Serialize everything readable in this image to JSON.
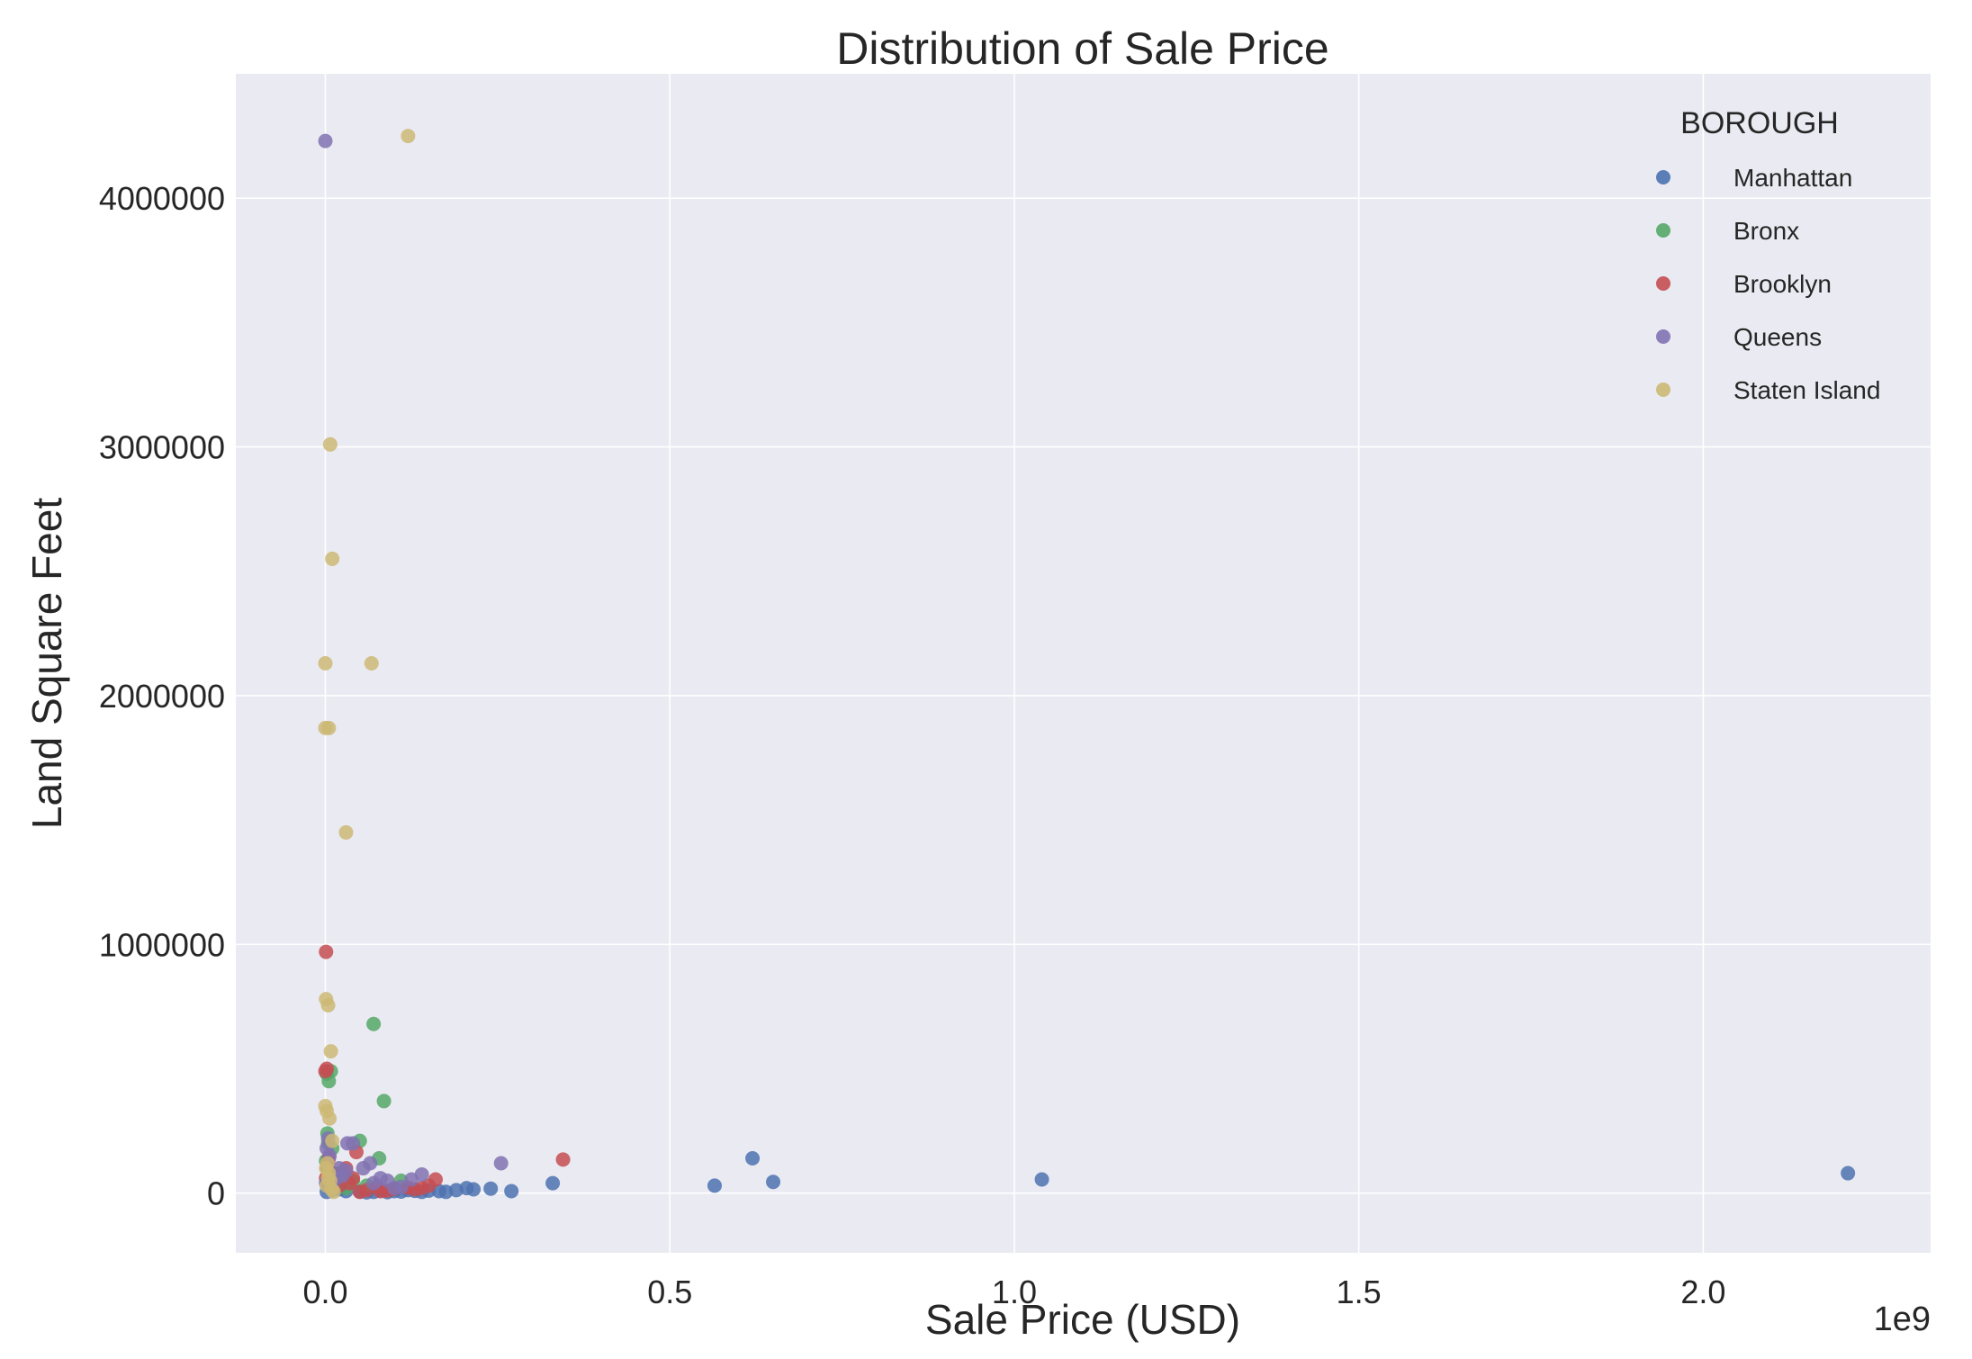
{
  "chart_data": {
    "type": "scatter",
    "title": "Distribution of Sale Price",
    "xlabel": "Sale Price (USD)",
    "ylabel": "Land Square Feet",
    "x_offset_label": "1e9",
    "xlim": [
      -0.13,
      2.33
    ],
    "ylim": [
      -240000,
      4500000
    ],
    "x_ticks": [
      0.0,
      0.5,
      1.0,
      1.5,
      2.0
    ],
    "x_tick_labels": [
      "0.0",
      "0.5",
      "1.0",
      "1.5",
      "2.0"
    ],
    "y_ticks": [
      0,
      1000000,
      2000000,
      3000000,
      4000000
    ],
    "y_tick_labels": [
      "0",
      "1000000",
      "2000000",
      "3000000",
      "4000000"
    ],
    "grid": true,
    "background": "#eaeaf2",
    "legend": {
      "title": "BOROUGH",
      "placement": "top-right"
    },
    "series": [
      {
        "name": "Manhattan",
        "color": "#4c72b0",
        "points": [
          [
            2.21,
            80000
          ],
          [
            1.04,
            55000
          ],
          [
            0.65,
            45000
          ],
          [
            0.62,
            140000
          ],
          [
            0.565,
            30000
          ],
          [
            0.33,
            40000
          ],
          [
            0.27,
            8000
          ],
          [
            0.24,
            18000
          ],
          [
            0.215,
            15000
          ],
          [
            0.205,
            20000
          ],
          [
            0.19,
            12000
          ],
          [
            0.175,
            5000
          ],
          [
            0.165,
            8000
          ],
          [
            0.15,
            10000
          ],
          [
            0.14,
            5000
          ],
          [
            0.13,
            9000
          ],
          [
            0.12,
            12000
          ],
          [
            0.11,
            6000
          ],
          [
            0.1,
            8000
          ],
          [
            0.09,
            4000
          ],
          [
            0.08,
            10000
          ],
          [
            0.07,
            5000
          ],
          [
            0.06,
            3000
          ],
          [
            0.05,
            6000
          ],
          [
            0.03,
            8000
          ],
          [
            0.02,
            15000
          ],
          [
            0.01,
            12000
          ],
          [
            0.005,
            25000
          ],
          [
            0.002,
            5000
          ]
        ]
      },
      {
        "name": "Bronx",
        "color": "#55a868",
        "points": [
          [
            0.07,
            680000
          ],
          [
            0.085,
            370000
          ],
          [
            0.005,
            450000
          ],
          [
            0.002,
            480000
          ],
          [
            0.008,
            490000
          ],
          [
            0.05,
            210000
          ],
          [
            0.078,
            140000
          ],
          [
            0.003,
            240000
          ],
          [
            0.004,
            200000
          ],
          [
            0.01,
            180000
          ],
          [
            0.11,
            50000
          ],
          [
            0.06,
            30000
          ],
          [
            0.04,
            50000
          ],
          [
            0.02,
            80000
          ],
          [
            0.015,
            60000
          ],
          [
            0.009,
            40000
          ],
          [
            0.005,
            70000
          ],
          [
            0.003,
            100000
          ],
          [
            0.001,
            130000
          ],
          [
            0.03,
            20000
          ]
        ]
      },
      {
        "name": "Brooklyn",
        "color": "#c44e52",
        "points": [
          [
            0.001,
            970000
          ],
          [
            0.002,
            500000
          ],
          [
            0.0,
            490000
          ],
          [
            0.345,
            135000
          ],
          [
            0.045,
            165000
          ],
          [
            0.16,
            55000
          ],
          [
            0.15,
            30000
          ],
          [
            0.14,
            20000
          ],
          [
            0.13,
            15000
          ],
          [
            0.12,
            22000
          ],
          [
            0.1,
            18000
          ],
          [
            0.09,
            10000
          ],
          [
            0.08,
            8000
          ],
          [
            0.075,
            25000
          ],
          [
            0.06,
            12000
          ],
          [
            0.05,
            5000
          ],
          [
            0.04,
            60000
          ],
          [
            0.035,
            40000
          ],
          [
            0.03,
            100000
          ],
          [
            0.02,
            30000
          ],
          [
            0.01,
            80000
          ],
          [
            0.005,
            140000
          ],
          [
            0.003,
            110000
          ],
          [
            0.001,
            60000
          ]
        ]
      },
      {
        "name": "Queens",
        "color": "#8172b2",
        "points": [
          [
            0.0,
            4230000
          ],
          [
            0.255,
            120000
          ],
          [
            0.14,
            75000
          ],
          [
            0.125,
            55000
          ],
          [
            0.09,
            50000
          ],
          [
            0.08,
            60000
          ],
          [
            0.07,
            40000
          ],
          [
            0.065,
            120000
          ],
          [
            0.055,
            100000
          ],
          [
            0.04,
            200000
          ],
          [
            0.032,
            200000
          ],
          [
            0.03,
            90000
          ],
          [
            0.025,
            70000
          ],
          [
            0.02,
            100000
          ],
          [
            0.015,
            60000
          ],
          [
            0.01,
            30000
          ],
          [
            0.006,
            150000
          ],
          [
            0.004,
            220000
          ],
          [
            0.002,
            180000
          ],
          [
            0.001,
            40000
          ],
          [
            0.1,
            20000
          ],
          [
            0.11,
            25000
          ]
        ]
      },
      {
        "name": "Staten Island",
        "color": "#ccb974",
        "points": [
          [
            0.12,
            4250000
          ],
          [
            0.007,
            3010000
          ],
          [
            0.01,
            2550000
          ],
          [
            0.0,
            2130000
          ],
          [
            0.067,
            2130000
          ],
          [
            0.0,
            1870000
          ],
          [
            0.005,
            1870000
          ],
          [
            0.03,
            1450000
          ],
          [
            0.001,
            780000
          ],
          [
            0.004,
            755000
          ],
          [
            0.008,
            570000
          ],
          [
            0.0,
            350000
          ],
          [
            0.002,
            330000
          ],
          [
            0.006,
            300000
          ],
          [
            0.01,
            210000
          ],
          [
            0.003,
            120000
          ],
          [
            0.005,
            80000
          ],
          [
            0.007,
            50000
          ],
          [
            0.002,
            30000
          ],
          [
            0.009,
            15000
          ],
          [
            0.012,
            5000
          ],
          [
            0.004,
            60000
          ],
          [
            0.001,
            100000
          ]
        ]
      }
    ]
  }
}
